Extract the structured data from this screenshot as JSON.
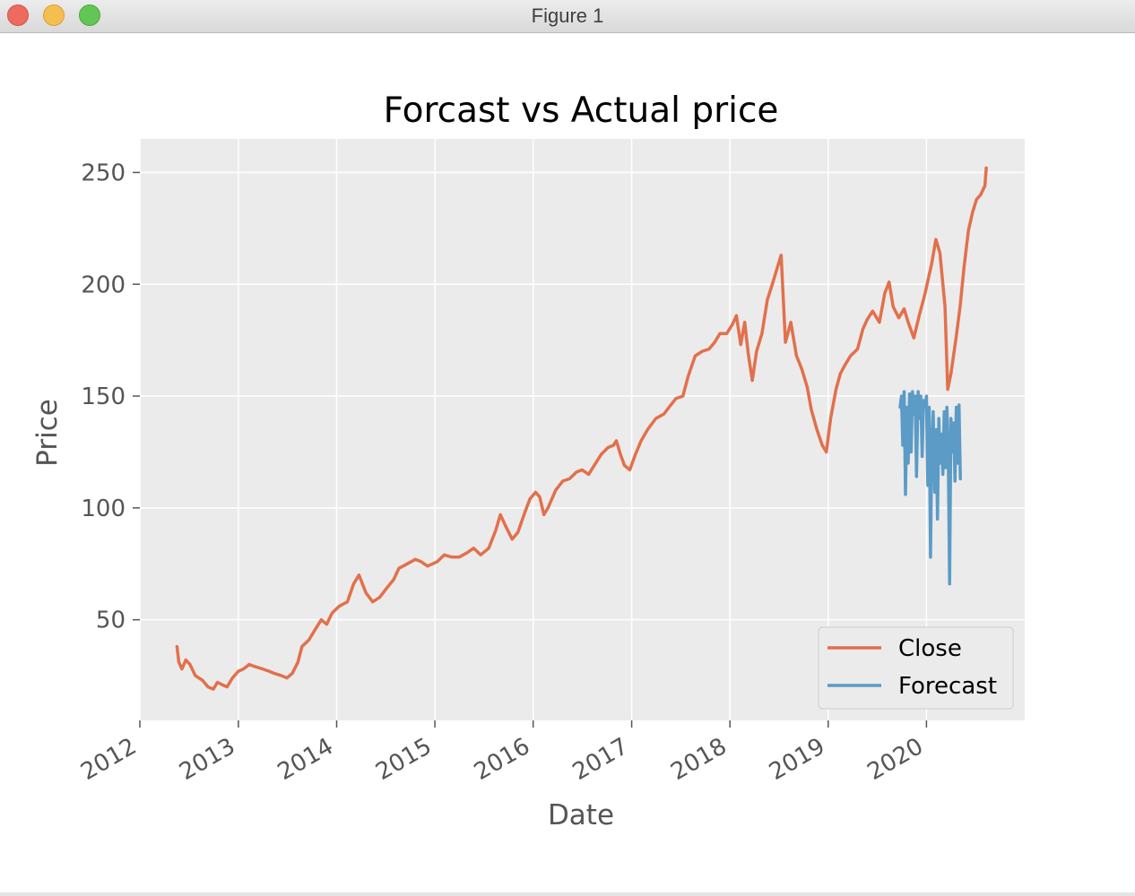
{
  "window": {
    "title": "Figure 1",
    "controls": [
      "close-button",
      "minimize-button",
      "zoom-button"
    ]
  },
  "colors": {
    "close_series": "#e2704c",
    "forecast_series": "#5b9bc6",
    "plot_background": "#ebebeb",
    "grid": "#ffffff"
  },
  "chart_data": {
    "type": "line",
    "title": "Forcast vs Actual price",
    "xlabel": "Date",
    "ylabel": "Price",
    "xlim": [
      "2012-01-01",
      "2020-12-31"
    ],
    "ylim": [
      5,
      265
    ],
    "x_ticks": [
      "2012",
      "2013",
      "2014",
      "2015",
      "2016",
      "2017",
      "2018",
      "2019",
      "2020"
    ],
    "y_ticks": [
      50,
      100,
      150,
      200,
      250
    ],
    "grid": true,
    "legend": {
      "position": "lower-right",
      "entries": [
        "Close",
        "Forecast"
      ]
    },
    "series": [
      {
        "name": "Close",
        "color": "#e2704c",
        "points": [
          [
            "2012-05-18",
            38
          ],
          [
            "2012-05-25",
            31
          ],
          [
            "2012-06-05",
            28
          ],
          [
            "2012-06-20",
            32
          ],
          [
            "2012-07-05",
            30
          ],
          [
            "2012-07-25",
            25
          ],
          [
            "2012-08-20",
            23
          ],
          [
            "2012-09-10",
            20
          ],
          [
            "2012-09-30",
            19
          ],
          [
            "2012-10-15",
            22
          ],
          [
            "2012-11-01",
            21
          ],
          [
            "2012-11-20",
            20
          ],
          [
            "2012-12-10",
            24
          ],
          [
            "2013-01-01",
            27
          ],
          [
            "2013-01-20",
            28
          ],
          [
            "2013-02-10",
            30
          ],
          [
            "2013-03-05",
            29
          ],
          [
            "2013-04-01",
            28
          ],
          [
            "2013-04-25",
            27
          ],
          [
            "2013-05-15",
            26
          ],
          [
            "2013-06-10",
            25
          ],
          [
            "2013-07-01",
            24
          ],
          [
            "2013-07-20",
            26
          ],
          [
            "2013-08-10",
            31
          ],
          [
            "2013-08-25",
            38
          ],
          [
            "2013-09-20",
            41
          ],
          [
            "2013-10-15",
            46
          ],
          [
            "2013-11-05",
            50
          ],
          [
            "2013-11-25",
            48
          ],
          [
            "2013-12-15",
            53
          ],
          [
            "2014-01-10",
            56
          ],
          [
            "2014-02-10",
            58
          ],
          [
            "2014-03-05",
            66
          ],
          [
            "2014-03-25",
            70
          ],
          [
            "2014-04-20",
            62
          ],
          [
            "2014-05-15",
            58
          ],
          [
            "2014-06-10",
            60
          ],
          [
            "2014-07-05",
            64
          ],
          [
            "2014-08-01",
            68
          ],
          [
            "2014-08-20",
            73
          ],
          [
            "2014-09-20",
            75
          ],
          [
            "2014-10-20",
            77
          ],
          [
            "2014-11-10",
            76
          ],
          [
            "2014-12-05",
            74
          ],
          [
            "2015-01-10",
            76
          ],
          [
            "2015-02-05",
            79
          ],
          [
            "2015-03-05",
            78
          ],
          [
            "2015-04-01",
            78
          ],
          [
            "2015-05-01",
            80
          ],
          [
            "2015-05-25",
            82
          ],
          [
            "2015-06-20",
            79
          ],
          [
            "2015-07-20",
            82
          ],
          [
            "2015-08-15",
            90
          ],
          [
            "2015-09-01",
            97
          ],
          [
            "2015-09-20",
            92
          ],
          [
            "2015-10-15",
            86
          ],
          [
            "2015-11-05",
            89
          ],
          [
            "2015-12-01",
            98
          ],
          [
            "2015-12-20",
            104
          ],
          [
            "2016-01-10",
            107
          ],
          [
            "2016-01-25",
            105
          ],
          [
            "2016-02-10",
            97
          ],
          [
            "2016-02-25",
            100
          ],
          [
            "2016-03-25",
            108
          ],
          [
            "2016-04-20",
            112
          ],
          [
            "2016-05-15",
            113
          ],
          [
            "2016-06-10",
            116
          ],
          [
            "2016-07-01",
            117
          ],
          [
            "2016-07-25",
            115
          ],
          [
            "2016-08-20",
            120
          ],
          [
            "2016-09-10",
            124
          ],
          [
            "2016-10-05",
            127
          ],
          [
            "2016-10-25",
            128
          ],
          [
            "2016-11-05",
            130
          ],
          [
            "2016-11-20",
            124
          ],
          [
            "2016-12-05",
            119
          ],
          [
            "2016-12-25",
            117
          ],
          [
            "2017-01-15",
            124
          ],
          [
            "2017-02-05",
            130
          ],
          [
            "2017-03-01",
            135
          ],
          [
            "2017-04-01",
            140
          ],
          [
            "2017-05-01",
            142
          ],
          [
            "2017-05-20",
            145
          ],
          [
            "2017-06-15",
            149
          ],
          [
            "2017-07-10",
            150
          ],
          [
            "2017-07-30",
            159
          ],
          [
            "2017-08-25",
            168
          ],
          [
            "2017-09-20",
            170
          ],
          [
            "2017-10-15",
            171
          ],
          [
            "2017-11-05",
            174
          ],
          [
            "2017-11-25",
            178
          ],
          [
            "2017-12-20",
            178
          ],
          [
            "2018-01-10",
            182
          ],
          [
            "2018-01-25",
            186
          ],
          [
            "2018-02-10",
            173
          ],
          [
            "2018-02-25",
            183
          ],
          [
            "2018-03-10",
            169
          ],
          [
            "2018-03-25",
            157
          ],
          [
            "2018-04-10",
            170
          ],
          [
            "2018-04-30",
            178
          ],
          [
            "2018-05-20",
            193
          ],
          [
            "2018-06-10",
            201
          ],
          [
            "2018-06-25",
            207
          ],
          [
            "2018-07-10",
            213
          ],
          [
            "2018-07-26",
            174
          ],
          [
            "2018-08-15",
            183
          ],
          [
            "2018-09-05",
            168
          ],
          [
            "2018-09-25",
            162
          ],
          [
            "2018-10-15",
            154
          ],
          [
            "2018-10-30",
            144
          ],
          [
            "2018-11-20",
            135
          ],
          [
            "2018-12-10",
            128
          ],
          [
            "2018-12-25",
            125
          ],
          [
            "2019-01-10",
            140
          ],
          [
            "2019-01-30",
            153
          ],
          [
            "2019-02-15",
            160
          ],
          [
            "2019-03-05",
            164
          ],
          [
            "2019-03-25",
            168
          ],
          [
            "2019-04-20",
            171
          ],
          [
            "2019-05-10",
            180
          ],
          [
            "2019-05-25",
            184
          ],
          [
            "2019-06-15",
            188
          ],
          [
            "2019-07-10",
            183
          ],
          [
            "2019-07-30",
            196
          ],
          [
            "2019-08-15",
            201
          ],
          [
            "2019-08-30",
            190
          ],
          [
            "2019-09-20",
            185
          ],
          [
            "2019-10-10",
            189
          ],
          [
            "2019-10-25",
            183
          ],
          [
            "2019-11-15",
            176
          ],
          [
            "2019-12-05",
            186
          ],
          [
            "2019-12-25",
            195
          ],
          [
            "2020-01-20",
            209
          ],
          [
            "2020-02-05",
            220
          ],
          [
            "2020-02-20",
            214
          ],
          [
            "2020-03-10",
            190
          ],
          [
            "2020-03-20",
            153
          ],
          [
            "2020-04-01",
            160
          ],
          [
            "2020-04-20",
            176
          ],
          [
            "2020-05-05",
            190
          ],
          [
            "2020-05-20",
            208
          ],
          [
            "2020-06-05",
            224
          ],
          [
            "2020-06-20",
            232
          ],
          [
            "2020-07-05",
            238
          ],
          [
            "2020-07-20",
            240
          ],
          [
            "2020-08-05",
            244
          ],
          [
            "2020-08-10",
            252
          ]
        ]
      },
      {
        "name": "Forecast",
        "color": "#5b9bc6",
        "points": [
          [
            "2019-09-25",
            145
          ],
          [
            "2019-09-30",
            150
          ],
          [
            "2019-10-05",
            128
          ],
          [
            "2019-10-10",
            152
          ],
          [
            "2019-10-15",
            106
          ],
          [
            "2019-10-20",
            145
          ],
          [
            "2019-10-25",
            120
          ],
          [
            "2019-10-30",
            151
          ],
          [
            "2019-11-05",
            125
          ],
          [
            "2019-11-10",
            152
          ],
          [
            "2019-11-15",
            142
          ],
          [
            "2019-11-20",
            150
          ],
          [
            "2019-11-25",
            114
          ],
          [
            "2019-12-01",
            152
          ],
          [
            "2019-12-06",
            140
          ],
          [
            "2019-12-11",
            150
          ],
          [
            "2019-12-16",
            123
          ],
          [
            "2019-12-21",
            148
          ],
          [
            "2019-12-26",
            145
          ],
          [
            "2020-01-01",
            150
          ],
          [
            "2020-01-06",
            110
          ],
          [
            "2020-01-11",
            145
          ],
          [
            "2020-01-16",
            78
          ],
          [
            "2020-01-21",
            128
          ],
          [
            "2020-01-26",
            143
          ],
          [
            "2020-02-01",
            107
          ],
          [
            "2020-02-06",
            135
          ],
          [
            "2020-02-11",
            95
          ],
          [
            "2020-02-16",
            140
          ],
          [
            "2020-02-21",
            120
          ],
          [
            "2020-02-26",
            133
          ],
          [
            "2020-03-02",
            115
          ],
          [
            "2020-03-07",
            143
          ],
          [
            "2020-03-12",
            118
          ],
          [
            "2020-03-17",
            145
          ],
          [
            "2020-03-22",
            125
          ],
          [
            "2020-03-27",
            66
          ],
          [
            "2020-04-01",
            140
          ],
          [
            "2020-04-06",
            125
          ],
          [
            "2020-04-11",
            138
          ],
          [
            "2020-04-16",
            112
          ],
          [
            "2020-04-21",
            145
          ],
          [
            "2020-04-26",
            120
          ],
          [
            "2020-05-01",
            146
          ],
          [
            "2020-05-06",
            113
          ]
        ]
      }
    ]
  }
}
